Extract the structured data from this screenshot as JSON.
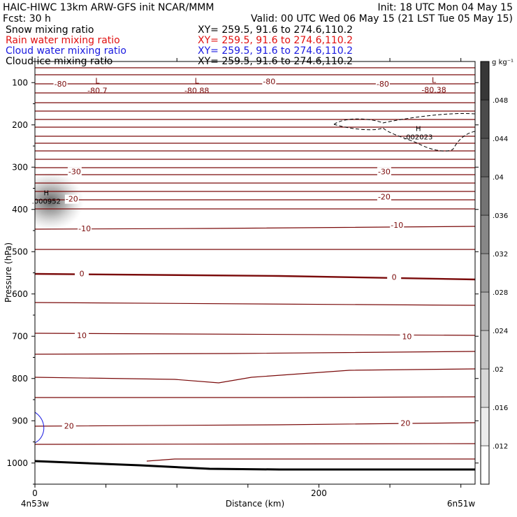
{
  "header": {
    "title": "HAIC-HIWC 13km ARW-GFS init   NCAR/MMM",
    "init": "Init: 18 UTC Mon 04 May 15",
    "fcst": "Fcst:   30 h",
    "valid": "Valid: 00 UTC Wed 06 May 15 (21 LST Tue 05 May 15)",
    "fields": [
      {
        "name": "Snow mixing ratio",
        "xy": "XY= 259.5, 91.6 to 274.6,110.2",
        "color": "#000000"
      },
      {
        "name": "Rain water mixing ratio",
        "xy": "XY= 259.5, 91.6 to 274.6,110.2",
        "color": "#e01010"
      },
      {
        "name": "Cloud water mixing ratio",
        "xy": "XY= 259.5, 91.6 to 274.6,110.2",
        "color": "#1a1ae0"
      },
      {
        "name": "Cloud ice mixing ratio",
        "xy": "XY= 259.5, 91.6 to 274.6,110.2",
        "color": "#000000"
      }
    ]
  },
  "chart_data": {
    "type": "cross-section contour",
    "xlabel": "Distance (km)",
    "ylabel": "Pressure (hPa)",
    "x_ticks": [
      0,
      200
    ],
    "y_ticks": [
      100,
      200,
      300,
      400,
      500,
      600,
      700,
      800,
      900,
      1000
    ],
    "xlim": [
      0,
      310
    ],
    "ylim": [
      50,
      1050
    ],
    "left_endpoint": "4n53w",
    "right_endpoint": "6n51w",
    "temperature_contours": {
      "color": "#7a0a0a",
      "interval": 5,
      "labels": [
        {
          "text": "-80",
          "x": 18,
          "p": 103
        },
        {
          "text": "-80",
          "x": 165,
          "p": 97
        },
        {
          "text": "-80",
          "x": 245,
          "p": 103
        },
        {
          "text": "-30",
          "x": 28,
          "p": 310
        },
        {
          "text": "-30",
          "x": 246,
          "p": 310
        },
        {
          "text": "-20",
          "x": 26,
          "p": 375
        },
        {
          "text": "-20",
          "x": 246,
          "p": 370
        },
        {
          "text": "-10",
          "x": 35,
          "p": 445
        },
        {
          "text": "-10",
          "x": 255,
          "p": 437
        },
        {
          "text": "0",
          "x": 33,
          "p": 552
        },
        {
          "text": "0",
          "x": 253,
          "p": 560
        },
        {
          "text": "10",
          "x": 33,
          "p": 698
        },
        {
          "text": "10",
          "x": 262,
          "p": 700
        },
        {
          "text": "20",
          "x": 24,
          "p": 912
        },
        {
          "text": "20",
          "x": 261,
          "p": 905
        }
      ],
      "extrema": [
        {
          "type": "L",
          "value": "-80.7",
          "x": 44,
          "p": 112
        },
        {
          "type": "L",
          "value": "-80.88",
          "x": 114,
          "p": 112
        },
        {
          "type": "L",
          "value": "-80.38",
          "x": 281,
          "p": 110
        }
      ]
    },
    "ice_maxima": [
      {
        "type": "H",
        "value": ".000952",
        "x": 8,
        "p": 380
      },
      {
        "type": "H",
        "value": ".002023",
        "x": 270,
        "p": 228
      }
    ],
    "colorbar": {
      "unit": "g kg⁻¹",
      "levels": [
        0.012,
        0.016,
        0.02,
        0.024,
        0.028,
        0.032,
        0.036,
        0.04,
        0.044,
        0.048
      ],
      "labels": [
        ".012",
        ".016",
        ".02",
        ".024",
        ".028",
        ".032",
        ".036",
        ".04",
        ".044",
        ".048"
      ]
    }
  }
}
